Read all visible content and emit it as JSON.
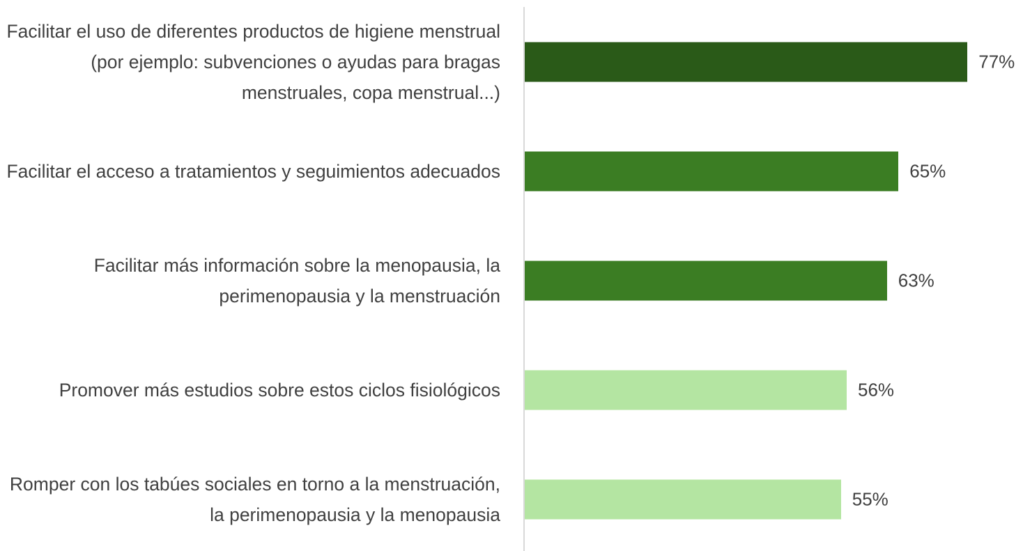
{
  "chart_data": {
    "type": "barh",
    "categories": [
      "Facilitar el uso de diferentes productos de higiene menstrual (por ejemplo: subvenciones o ayudas para bragas menstruales, copa menstrual...)",
      "Facilitar el acceso a tratamientos y seguimientos adecuados",
      "Facilitar más información sobre la menopausia, la perimenopausia y la menstruación",
      "Promover más estudios sobre estos ciclos fisiológicos",
      "Romper con los tabúes sociales en torno a la menstruación, la perimenopausia y la menopausia"
    ],
    "values": [
      77,
      65,
      63,
      56,
      55
    ],
    "value_labels": [
      "77%",
      "65%",
      "63%",
      "56%",
      "55%"
    ],
    "colors": [
      "#2a5a18",
      "#3b7d23",
      "#3b7d23",
      "#b4e5a2",
      "#b4e5a2"
    ]
  }
}
